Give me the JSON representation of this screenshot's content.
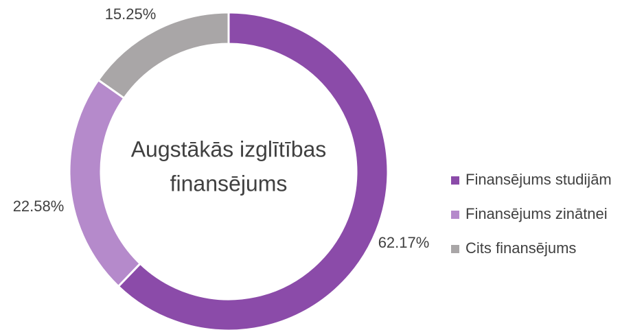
{
  "chart_data": {
    "type": "donut",
    "center_text": [
      "Augstākās izglītības",
      "finansējums"
    ],
    "categories": [
      "Finansējums studijām",
      "Finansējums zinātnei",
      "Cits finansējums"
    ],
    "values": [
      62.17,
      22.58,
      15.25
    ],
    "value_labels": [
      "62.17%",
      "22.58%",
      "15.25%"
    ],
    "colors": [
      "#8b4ba9",
      "#b58acb",
      "#a9a6a7"
    ],
    "legend": "right"
  }
}
